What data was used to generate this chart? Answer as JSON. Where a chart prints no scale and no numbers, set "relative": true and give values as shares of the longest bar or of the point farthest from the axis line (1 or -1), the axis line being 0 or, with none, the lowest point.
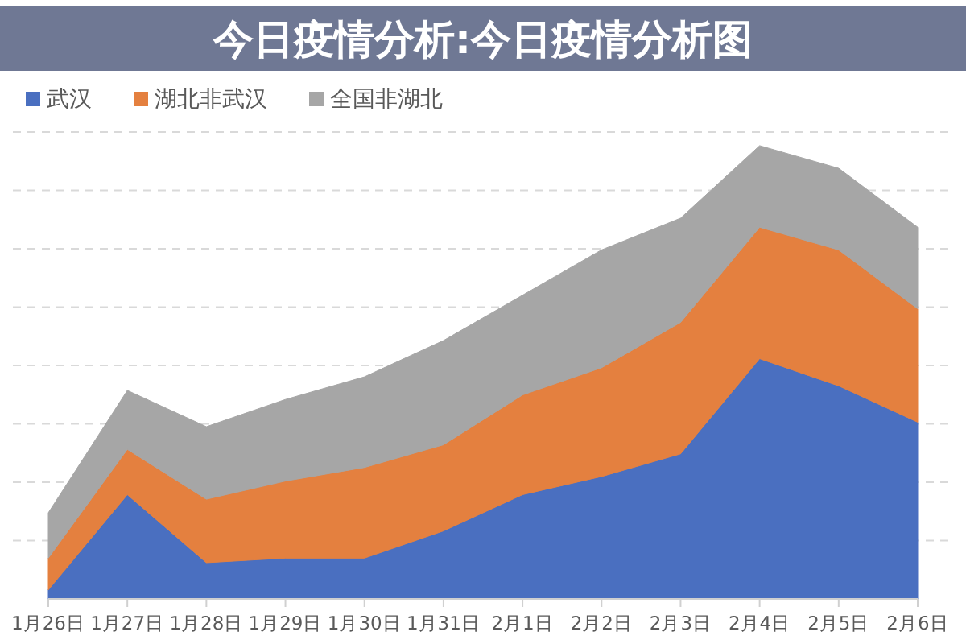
{
  "chart_data": {
    "type": "area",
    "title": "今日疫情分析:今日疫情分析图",
    "categories": [
      "1月26日",
      "1月27日",
      "1月28日",
      "1月29日",
      "1月30日",
      "1月31日",
      "2月1日",
      "2月2日",
      "2月3日",
      "2月4日",
      "2月5日",
      "2月6日"
    ],
    "stacked": true,
    "relative": true,
    "grid": "y",
    "legend": "top left",
    "series": [
      {
        "name": "武汉",
        "color": "#4a6fc0",
        "values": [
          0.02,
          0.23,
          0.08,
          0.09,
          0.09,
          0.15,
          0.23,
          0.27,
          0.32,
          0.53,
          0.47,
          0.39
        ]
      },
      {
        "name": "湖北非武汉",
        "color": "#e4803f",
        "values": [
          0.07,
          0.1,
          0.14,
          0.17,
          0.2,
          0.19,
          0.22,
          0.24,
          0.29,
          0.29,
          0.3,
          0.25
        ]
      },
      {
        "name": "全国非湖北",
        "color": "#a6a6a6",
        "values": [
          0.1,
          0.13,
          0.16,
          0.18,
          0.2,
          0.23,
          0.22,
          0.26,
          0.23,
          0.18,
          0.18,
          0.18
        ]
      }
    ]
  }
}
